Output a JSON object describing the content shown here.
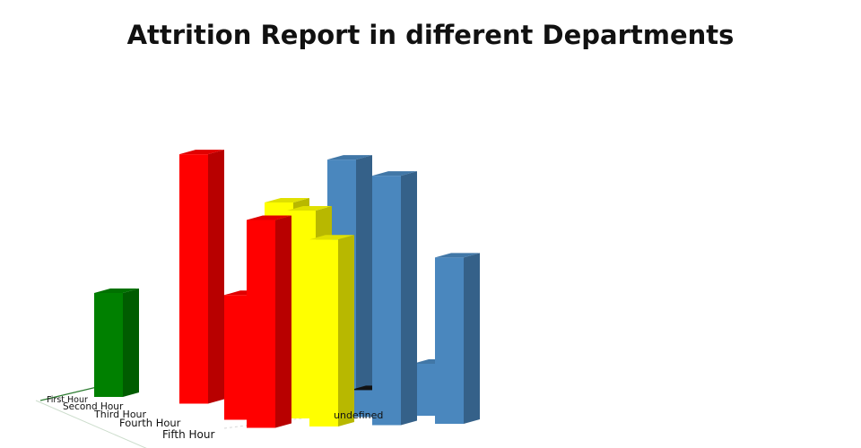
{
  "chart_data": {
    "type": "bar",
    "variant": "3d-bar",
    "title": "Attrition Report in different Departments",
    "categories": [
      "First Hour",
      "Second Hour",
      "Third Hour",
      "Fourth Hour",
      "Fifth Hour"
    ],
    "series_labels": [
      "",
      "",
      "",
      "",
      "undefined"
    ],
    "series": [
      {
        "color": "#008000",
        "values": [
          5,
          0,
          0,
          0,
          0
        ]
      },
      {
        "color": "#ff0000",
        "values": [
          0,
          12,
          0,
          6,
          10
        ]
      },
      {
        "color": "#ffff00",
        "values": [
          0,
          4,
          10,
          10,
          9
        ]
      },
      {
        "color": "#4a87be",
        "values": [
          0,
          6,
          12,
          1.3,
          12
        ]
      },
      {
        "color": "#4a87be",
        "values": [
          0,
          0,
          0,
          2.5,
          8
        ]
      }
    ],
    "legend": "none",
    "grid": false
  }
}
